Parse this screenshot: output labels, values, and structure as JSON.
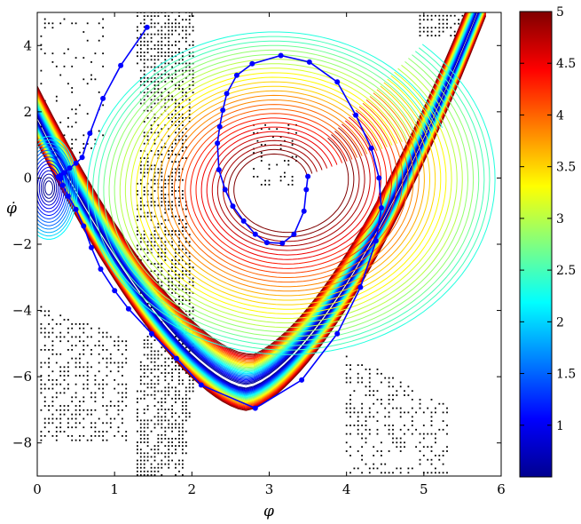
{
  "chart_data": {
    "type": "contour",
    "title": "",
    "xlabel": "φ",
    "ylabel": "φ̇",
    "xlim": [
      0,
      6
    ],
    "ylim": [
      -9,
      5
    ],
    "x_ticks": [
      0,
      1,
      2,
      3,
      4,
      5,
      6
    ],
    "y_ticks": [
      -8,
      -6,
      -4,
      -2,
      0,
      2,
      4
    ],
    "colorbar": {
      "range": [
        0.5,
        5
      ],
      "ticks": [
        1,
        1.5,
        2,
        2.5,
        3,
        3.5,
        4,
        4.5,
        5
      ],
      "colormap": "jet",
      "colormap_stops": [
        "#00008f",
        "#0000ff",
        "#0080ff",
        "#00ffff",
        "#80ff80",
        "#ffff00",
        "#ff8000",
        "#ff0000",
        "#800000"
      ]
    },
    "contour_levels": {
      "min": 0.5,
      "max": 5,
      "count": 28
    },
    "features": {
      "basin_origin": [
        0,
        0
      ],
      "spiral_center": [
        3.15,
        -1.0
      ],
      "valley_bottom": [
        2.7,
        -6.3
      ],
      "boundary_dots": "black stippled region boundaries"
    },
    "series": [
      {
        "color": "#0000ff",
        "marker": "circle",
        "points": [
          [
            1.42,
            4.55
          ],
          [
            1.08,
            3.4
          ],
          [
            0.85,
            2.4
          ],
          [
            0.68,
            1.35
          ],
          [
            0.58,
            0.62
          ],
          [
            0.5,
            0.45
          ],
          [
            0.42,
            0.3
          ],
          [
            0.35,
            0.16
          ],
          [
            0.3,
            0.08
          ],
          [
            0.27,
            0.03
          ],
          [
            0.3,
            -0.02
          ],
          [
            0.33,
            -0.22
          ],
          [
            0.4,
            -0.55
          ],
          [
            0.5,
            -0.95
          ],
          [
            0.6,
            -1.45
          ],
          [
            0.7,
            -2.1
          ],
          [
            0.82,
            -2.75
          ],
          [
            1.0,
            -3.4
          ],
          [
            1.18,
            -3.95
          ],
          [
            1.48,
            -4.7
          ],
          [
            1.8,
            -5.45
          ],
          [
            2.12,
            -6.25
          ],
          [
            2.82,
            -6.95
          ],
          [
            3.42,
            -6.1
          ],
          [
            3.88,
            -4.7
          ],
          [
            4.18,
            -3.3
          ],
          [
            4.38,
            -1.9
          ],
          [
            4.45,
            -0.9
          ],
          [
            4.42,
            0.0
          ],
          [
            4.32,
            0.9
          ],
          [
            4.12,
            1.9
          ],
          [
            3.88,
            2.9
          ],
          [
            3.52,
            3.5
          ],
          [
            3.15,
            3.7
          ],
          [
            2.78,
            3.45
          ],
          [
            2.58,
            3.1
          ],
          [
            2.45,
            2.55
          ],
          [
            2.4,
            2.05
          ],
          [
            2.36,
            1.55
          ],
          [
            2.33,
            1.05
          ],
          [
            2.35,
            0.25
          ],
          [
            2.43,
            -0.35
          ],
          [
            2.53,
            -0.85
          ],
          [
            2.67,
            -1.3
          ],
          [
            2.82,
            -1.7
          ],
          [
            2.97,
            -1.95
          ],
          [
            3.17,
            -1.97
          ],
          [
            3.32,
            -1.7
          ],
          [
            3.45,
            -1.0
          ],
          [
            3.48,
            -0.35
          ],
          [
            3.5,
            0.05
          ]
        ]
      }
    ]
  }
}
